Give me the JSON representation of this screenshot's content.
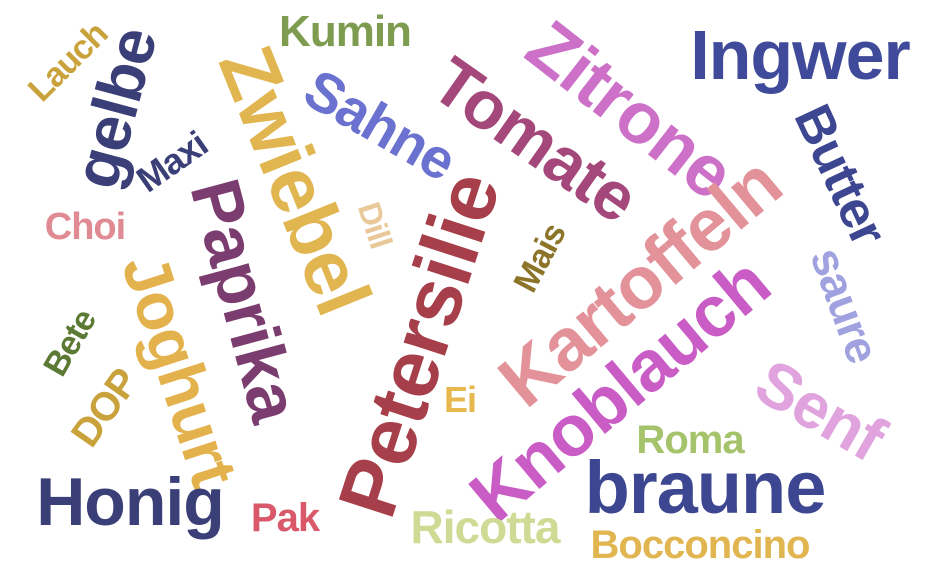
{
  "word_cloud": {
    "words": [
      {
        "text": "Ingwer",
        "color": "#3f4b9a",
        "orientation": "horizontal"
      },
      {
        "text": "Zitrone",
        "color": "#cd70c8",
        "orientation": "rotated"
      },
      {
        "text": "Kumin",
        "color": "#7e9c50",
        "orientation": "horizontal"
      },
      {
        "text": "Lauch",
        "color": "#c9a23c",
        "orientation": "rotated"
      },
      {
        "text": "gelbe",
        "color": "#3b3f78",
        "orientation": "rotated"
      },
      {
        "text": "Zwiebel",
        "color": "#e1b54f",
        "orientation": "rotated"
      },
      {
        "text": "Sahne",
        "color": "#6a71cf",
        "orientation": "rotated"
      },
      {
        "text": "Tomate",
        "color": "#a4477a",
        "orientation": "rotated"
      },
      {
        "text": "Butter",
        "color": "#3d4690",
        "orientation": "rotated"
      },
      {
        "text": "Maxi",
        "color": "#3b3f78",
        "orientation": "rotated"
      },
      {
        "text": "Paprika",
        "color": "#7b3d6f",
        "orientation": "rotated"
      },
      {
        "text": "Dill",
        "color": "#e9c99a",
        "orientation": "rotated"
      },
      {
        "text": "Kartoffeln",
        "color": "#e3929a",
        "orientation": "rotated"
      },
      {
        "text": "saure",
        "color": "#9fa2df",
        "orientation": "rotated"
      },
      {
        "text": "Choi",
        "color": "#e08b93",
        "orientation": "horizontal"
      },
      {
        "text": "Joghurt",
        "color": "#e3b24d",
        "orientation": "rotated"
      },
      {
        "text": "Petersilie",
        "color": "#a63f4a",
        "orientation": "rotated"
      },
      {
        "text": "Mais",
        "color": "#8c7428",
        "orientation": "rotated"
      },
      {
        "text": "Knoblauch",
        "color": "#c95cc5",
        "orientation": "rotated"
      },
      {
        "text": "Senf",
        "color": "#e0a3dd",
        "orientation": "rotated"
      },
      {
        "text": "Bete",
        "color": "#5c7a34",
        "orientation": "rotated"
      },
      {
        "text": "DOP",
        "color": "#c9a23c",
        "orientation": "rotated"
      },
      {
        "text": "Ei",
        "color": "#e6b84d",
        "orientation": "horizontal"
      },
      {
        "text": "Roma",
        "color": "#a5c36b",
        "orientation": "horizontal"
      },
      {
        "text": "Honig",
        "color": "#3b3f78",
        "orientation": "horizontal"
      },
      {
        "text": "braune",
        "color": "#3d4690",
        "orientation": "horizontal"
      },
      {
        "text": "Pak",
        "color": "#d9586a",
        "orientation": "horizontal"
      },
      {
        "text": "Ricotta",
        "color": "#cfdb95",
        "orientation": "horizontal"
      },
      {
        "text": "Bocconcino",
        "color": "#e1b54f",
        "orientation": "horizontal"
      }
    ]
  }
}
